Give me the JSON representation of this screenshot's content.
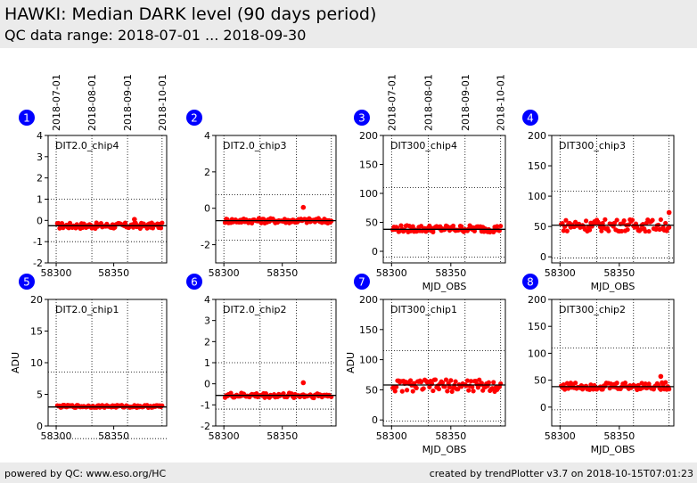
{
  "header": {
    "title": "HAWKI: Median DARK level (90 days period)",
    "subtitle": "QC data range: 2018-07-01 ... 2018-09-30"
  },
  "footer": {
    "left": "powered by QC: www.eso.org/HC",
    "right": "created by trendPlotter v3.7 on 2018-10-15T07:01:23"
  },
  "colors": {
    "points": "#ff0000",
    "badge": "#0000ff",
    "reference_line": "#000000",
    "grid": "#000000"
  },
  "chart_data": [
    {
      "type": "scatter",
      "index": "1",
      "label": "DIT2.0_chip4",
      "ylim": [
        -2,
        4
      ],
      "yticks": [
        "-2",
        "-1",
        "0",
        "1",
        "2",
        "3",
        "4"
      ],
      "ylabel": "",
      "xlim": [
        58293,
        58396
      ],
      "xticks": [
        "58300",
        "58350"
      ],
      "xlabel": "",
      "date_ticks": [
        "2018-07-01",
        "2018-08-01",
        "2018-09-01",
        "2018-10-01"
      ],
      "vgrid": [
        58300,
        58331,
        58362,
        58392
      ],
      "hgrid": [
        1.0,
        -1.0
      ],
      "reference": -0.25,
      "base": -0.25,
      "amplitude": 0.14,
      "outliers": [
        [
          58368,
          0.05
        ]
      ]
    },
    {
      "type": "scatter",
      "index": "2",
      "label": "DIT2.0_chip3",
      "ylim": [
        -3,
        4
      ],
      "yticks": [
        "-2",
        "0",
        "2",
        "4"
      ],
      "ylabel": "",
      "xlim": [
        58293,
        58396
      ],
      "xticks": [
        "58300",
        "58350"
      ],
      "xlabel": "",
      "date_ticks": [],
      "vgrid": [
        58300,
        58331,
        58362,
        58392
      ],
      "hgrid": [
        0.75,
        -1.75
      ],
      "reference": -0.68,
      "base": -0.68,
      "amplitude": 0.14,
      "outliers": [
        [
          58368,
          0.05
        ]
      ]
    },
    {
      "type": "scatter",
      "index": "3",
      "label": "DIT300_chip4",
      "ylim": [
        -20,
        200
      ],
      "yticks": [
        "0",
        "50",
        "100",
        "150",
        "200"
      ],
      "ylabel": "",
      "xlim": [
        58293,
        58396
      ],
      "xticks": [
        "58300",
        "58350"
      ],
      "xlabel": "MJD_OBS",
      "date_ticks": [
        "2018-07-01",
        "2018-08-01",
        "2018-09-01",
        "2018-10-01"
      ],
      "vgrid": [
        58300,
        58331,
        58362,
        58392
      ],
      "hgrid": [
        110,
        -10
      ],
      "reference": 38,
      "base": 39,
      "amplitude": 6,
      "outliers": []
    },
    {
      "type": "scatter",
      "index": "4",
      "label": "DIT300_chip3",
      "ylim": [
        -10,
        200
      ],
      "yticks": [
        "0",
        "50",
        "100",
        "150",
        "200"
      ],
      "ylabel": "",
      "xlim": [
        58293,
        58396
      ],
      "xticks": [
        "58300",
        "58350"
      ],
      "xlabel": "MJD_OBS",
      "date_ticks": [],
      "vgrid": [
        58300,
        58331,
        58362,
        58392
      ],
      "hgrid": [
        108,
        -2
      ],
      "reference": 52,
      "base": 52,
      "amplitude": 10,
      "outliers": [
        [
          58392,
          73
        ]
      ]
    },
    {
      "type": "scatter",
      "index": "5",
      "label": "DIT2.0_chip1",
      "ylim": [
        0,
        20
      ],
      "yticks": [
        "0",
        "5",
        "10",
        "15",
        "20"
      ],
      "ylabel": "ADU",
      "xlim": [
        58293,
        58396
      ],
      "xticks": [
        "58300",
        "58350"
      ],
      "xlabel": "",
      "date_ticks": [],
      "vgrid": [
        58300,
        58331,
        58362,
        58392
      ],
      "hgrid": [
        8.5,
        -2
      ],
      "reference": 3.0,
      "base": 3.1,
      "amplitude": 0.2,
      "outliers": []
    },
    {
      "type": "scatter",
      "index": "6",
      "label": "DIT2.0_chip2",
      "ylim": [
        -2,
        4
      ],
      "yticks": [
        "-2",
        "-1",
        "0",
        "1",
        "2",
        "3",
        "4"
      ],
      "ylabel": "",
      "xlim": [
        58293,
        58396
      ],
      "xticks": [
        "58300",
        "58350"
      ],
      "xlabel": "",
      "date_ticks": [],
      "vgrid": [
        58300,
        58331,
        58362,
        58392
      ],
      "hgrid": [
        1.0,
        -1.2
      ],
      "reference": -0.55,
      "base": -0.55,
      "amplitude": 0.12,
      "outliers": [
        [
          58368,
          0.05
        ]
      ]
    },
    {
      "type": "scatter",
      "index": "7",
      "label": "DIT300_chip1",
      "ylim": [
        -10,
        200
      ],
      "yticks": [
        "0",
        "50",
        "100",
        "150",
        "200"
      ],
      "ylabel": "ADU",
      "xlim": [
        58293,
        58396
      ],
      "xticks": [
        "58300",
        "58350"
      ],
      "xlabel": "MJD_OBS",
      "date_ticks": [],
      "vgrid": [
        58300,
        58331,
        58362,
        58392
      ],
      "hgrid": [
        115,
        -2
      ],
      "reference": 58,
      "base": 57,
      "amplitude": 10,
      "outliers": []
    },
    {
      "type": "scatter",
      "index": "8",
      "label": "DIT300_chip2",
      "ylim": [
        -35,
        200
      ],
      "yticks": [
        "0",
        "50",
        "100",
        "150",
        "200"
      ],
      "ylabel": "",
      "xlim": [
        58293,
        58396
      ],
      "xticks": [
        "58300",
        "58350"
      ],
      "xlabel": "MJD_OBS",
      "date_ticks": [],
      "vgrid": [
        58300,
        58331,
        58362,
        58392
      ],
      "hgrid": [
        110,
        -5
      ],
      "reference": 38,
      "base": 39,
      "amplitude": 7,
      "outliers": [
        [
          58385,
          57
        ]
      ]
    }
  ]
}
